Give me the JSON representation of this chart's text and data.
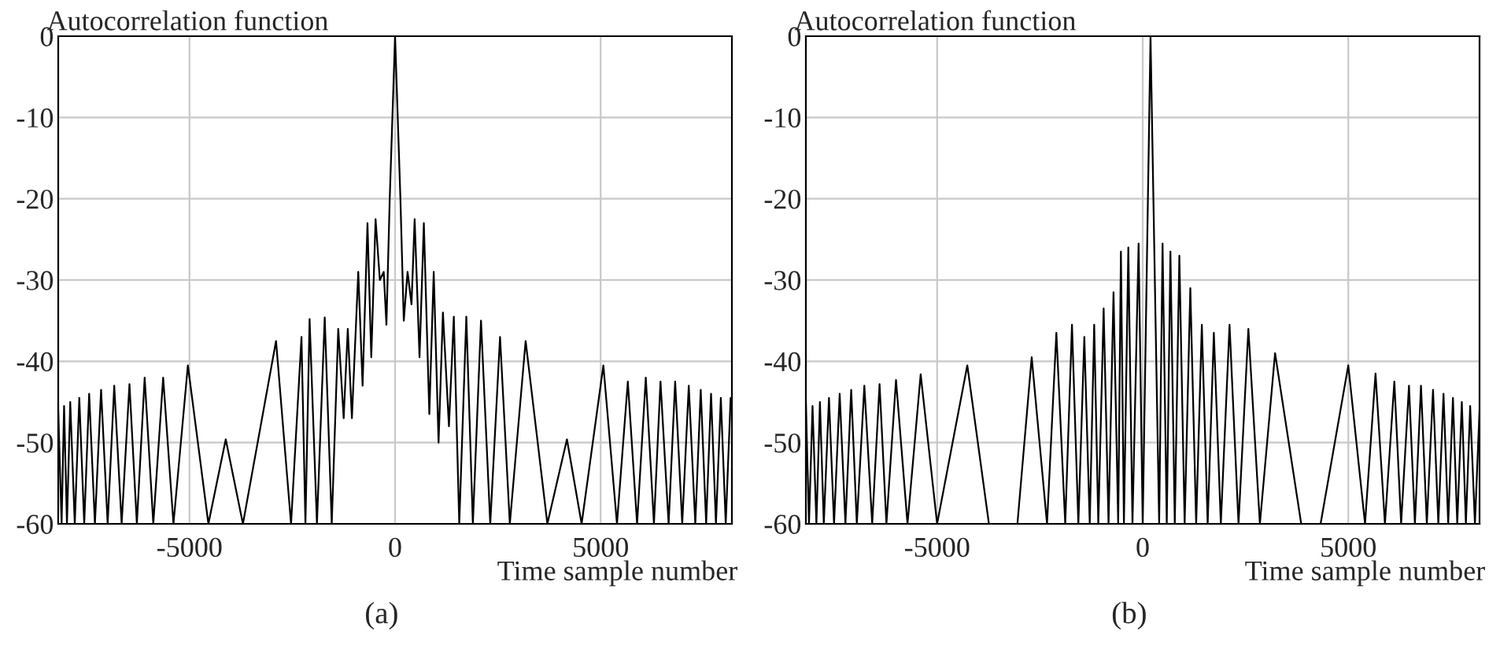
{
  "chart_data": [
    {
      "type": "line",
      "ylabel": "Autocorrelation function",
      "xlabel": "Time sample number",
      "annotations": [
        "(a)"
      ],
      "xlim": [
        -8192,
        8192
      ],
      "ylim": [
        -60,
        0
      ],
      "xticks": [
        -5000,
        0,
        5000
      ],
      "yticks": [
        -60,
        -50,
        -40,
        -30,
        -20,
        -10,
        0
      ],
      "grid": true,
      "series": [
        {
          "color": "#000000",
          "x": [
            -8192,
            -8110,
            -8050,
            -7980,
            -7900,
            -7790,
            -7680,
            -7560,
            -7440,
            -7300,
            -7150,
            -6990,
            -6830,
            -6650,
            -6460,
            -6280,
            -6090,
            -5880,
            -5640,
            -5390,
            -5039,
            -4540,
            -4118,
            -3700,
            -2895,
            -2530,
            -2276,
            -2180,
            -2079,
            -1900,
            -1711,
            -1540,
            -1382,
            -1250,
            -1150,
            -1050,
            -895,
            -790,
            -671,
            -579,
            -474,
            -370,
            -276,
            -210,
            -130,
            0,
            130,
            212,
            304,
            400,
            476,
            595,
            700,
            833,
            940,
            1058,
            1164,
            1310,
            1429,
            1561,
            1733,
            1892,
            2090,
            2315,
            2553,
            2791,
            3175,
            3704,
            4180,
            4537,
            5066,
            5397,
            5661,
            5886,
            6098,
            6296,
            6455,
            6653,
            6812,
            6984,
            7143,
            7302,
            7434,
            7566,
            7685,
            7804,
            7923,
            8042,
            8161,
            8192
          ],
          "values": [
            -46,
            -60,
            -45.5,
            -60,
            -45,
            -60,
            -44.5,
            -60,
            -44,
            -60,
            -43.5,
            -60,
            -43,
            -60,
            -42.8,
            -60,
            -42,
            -60,
            -42,
            -60,
            -40.5,
            -60,
            -49.6,
            -60,
            -37.5,
            -60,
            -37,
            -60,
            -34.8,
            -60,
            -34.6,
            -60,
            -36,
            -47,
            -36,
            -47,
            -29,
            -43,
            -23,
            -39.5,
            -22.5,
            -30,
            -29,
            -35.5,
            -20,
            0,
            -20,
            -35,
            -29,
            -33,
            -22.5,
            -39.5,
            -23,
            -46.5,
            -29,
            -50,
            -34,
            -48,
            -34.5,
            -60,
            -34.5,
            -60,
            -35,
            -60,
            -37,
            -60,
            -37.5,
            -60,
            -49.6,
            -60,
            -40.5,
            -60,
            -42.5,
            -60,
            -42,
            -60,
            -42.5,
            -60,
            -42.5,
            -60,
            -43,
            -60,
            -43.5,
            -60,
            -44,
            -60,
            -44.5,
            -60,
            -44.5,
            -46
          ]
        }
      ]
    },
    {
      "type": "line",
      "ylabel": "Autocorrelation function",
      "xlabel": "Time sample number",
      "annotations": [
        "(b)"
      ],
      "xlim": [
        -8192,
        8192
      ],
      "ylim": [
        -60,
        0
      ],
      "xticks": [
        -5000,
        0,
        5000
      ],
      "yticks": [
        -60,
        -50,
        -40,
        -30,
        -20,
        -10,
        0
      ],
      "grid": true,
      "series": [
        {
          "color": "#000000",
          "x": [
            -8192,
            -8116,
            -8030,
            -7936,
            -7850,
            -7756,
            -7630,
            -7507,
            -7370,
            -7230,
            -7090,
            -6953,
            -6770,
            -6579,
            -6400,
            -6233,
            -6000,
            -5720,
            -5400,
            -5000,
            -4266,
            -3740,
            -3047,
            -2700,
            -2327,
            -2100,
            -1884,
            -1720,
            -1565,
            -1420,
            -1288,
            -1180,
            -1080,
            -950,
            -831,
            -710,
            -596,
            -530,
            -457,
            -350,
            -249,
            -100,
            0,
            190,
            400,
            483,
            585,
            674,
            780,
            891,
            1020,
            1158,
            1300,
            1438,
            1580,
            1730,
            1900,
            2112,
            2330,
            2570,
            2850,
            3219,
            3855,
            4326,
            5000,
            5407,
            5662,
            5891,
            6120,
            6285,
            6476,
            6620,
            6768,
            6910,
            7061,
            7190,
            7316,
            7430,
            7545,
            7650,
            7761,
            7860,
            7964,
            8080,
            8192
          ],
          "values": [
            -45,
            -60,
            -45.5,
            -60,
            -45,
            -60,
            -44.5,
            -60,
            -44,
            -60,
            -43.5,
            -60,
            -43,
            -60,
            -42.8,
            -60,
            -42.3,
            -60,
            -41.6,
            -60,
            -40.5,
            -60,
            -60,
            -39.5,
            -60,
            -36.5,
            -60,
            -35.5,
            -60,
            -37,
            -60,
            -35.5,
            -60,
            -33.5,
            -60,
            -31.5,
            -60,
            -26.5,
            -60,
            -26,
            -60,
            -25.5,
            -60,
            0,
            -60,
            -25.5,
            -60,
            -26.5,
            -60,
            -27,
            -60,
            -31,
            -60,
            -35.5,
            -60,
            -36.5,
            -60,
            -35.5,
            -60,
            -36,
            -60,
            -39,
            -60,
            -60,
            -40.5,
            -60,
            -41.5,
            -60,
            -42.5,
            -60,
            -43,
            -60,
            -43,
            -60,
            -43.5,
            -60,
            -44,
            -60,
            -44.5,
            -60,
            -45,
            -60,
            -45.5,
            -60,
            -46
          ]
        }
      ]
    }
  ]
}
